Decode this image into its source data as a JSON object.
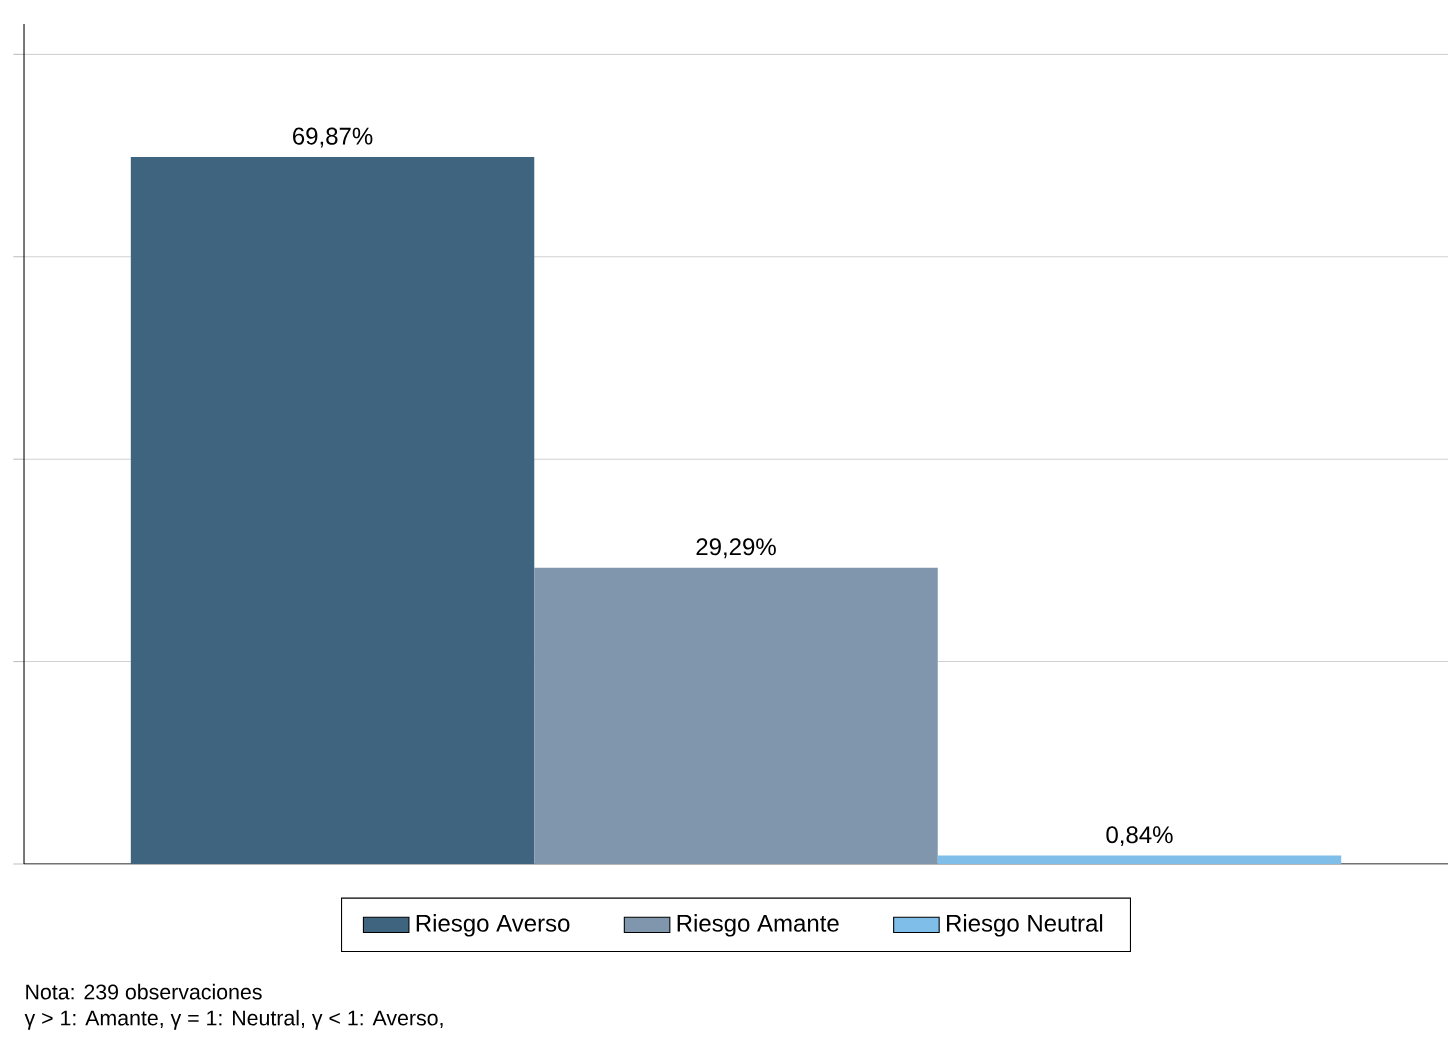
{
  "chart_data": {
    "type": "bar",
    "categories": [
      null
    ],
    "series": [
      {
        "name": "Riesgo Averso",
        "color": "#3f6480",
        "values": [
          69.87
        ],
        "value_labels": [
          "69,87%"
        ]
      },
      {
        "name": "Riesgo Amante",
        "color": "#7f96ac",
        "values": [
          29.29
        ],
        "value_labels": [
          "29,29%"
        ]
      },
      {
        "name": "Riesgo Neutral",
        "color": "#7fbee8",
        "values": [
          0.84
        ],
        "value_labels": [
          "0,84%"
        ]
      }
    ],
    "ylim": [
      0,
      83
    ],
    "yticks": [
      {
        "value": 0,
        "label": null
      },
      {
        "value": 20,
        "label": null
      },
      {
        "value": 40,
        "label": null
      },
      {
        "value": 60,
        "label": null
      },
      {
        "value": 80,
        "label": null
      }
    ],
    "grid": "y",
    "legend": "bottom",
    "annotations": [
      "Nota: 239 observaciones",
      "γ > 1: Amante, γ = 1: Neutral, γ < 1: Averso,"
    ]
  }
}
